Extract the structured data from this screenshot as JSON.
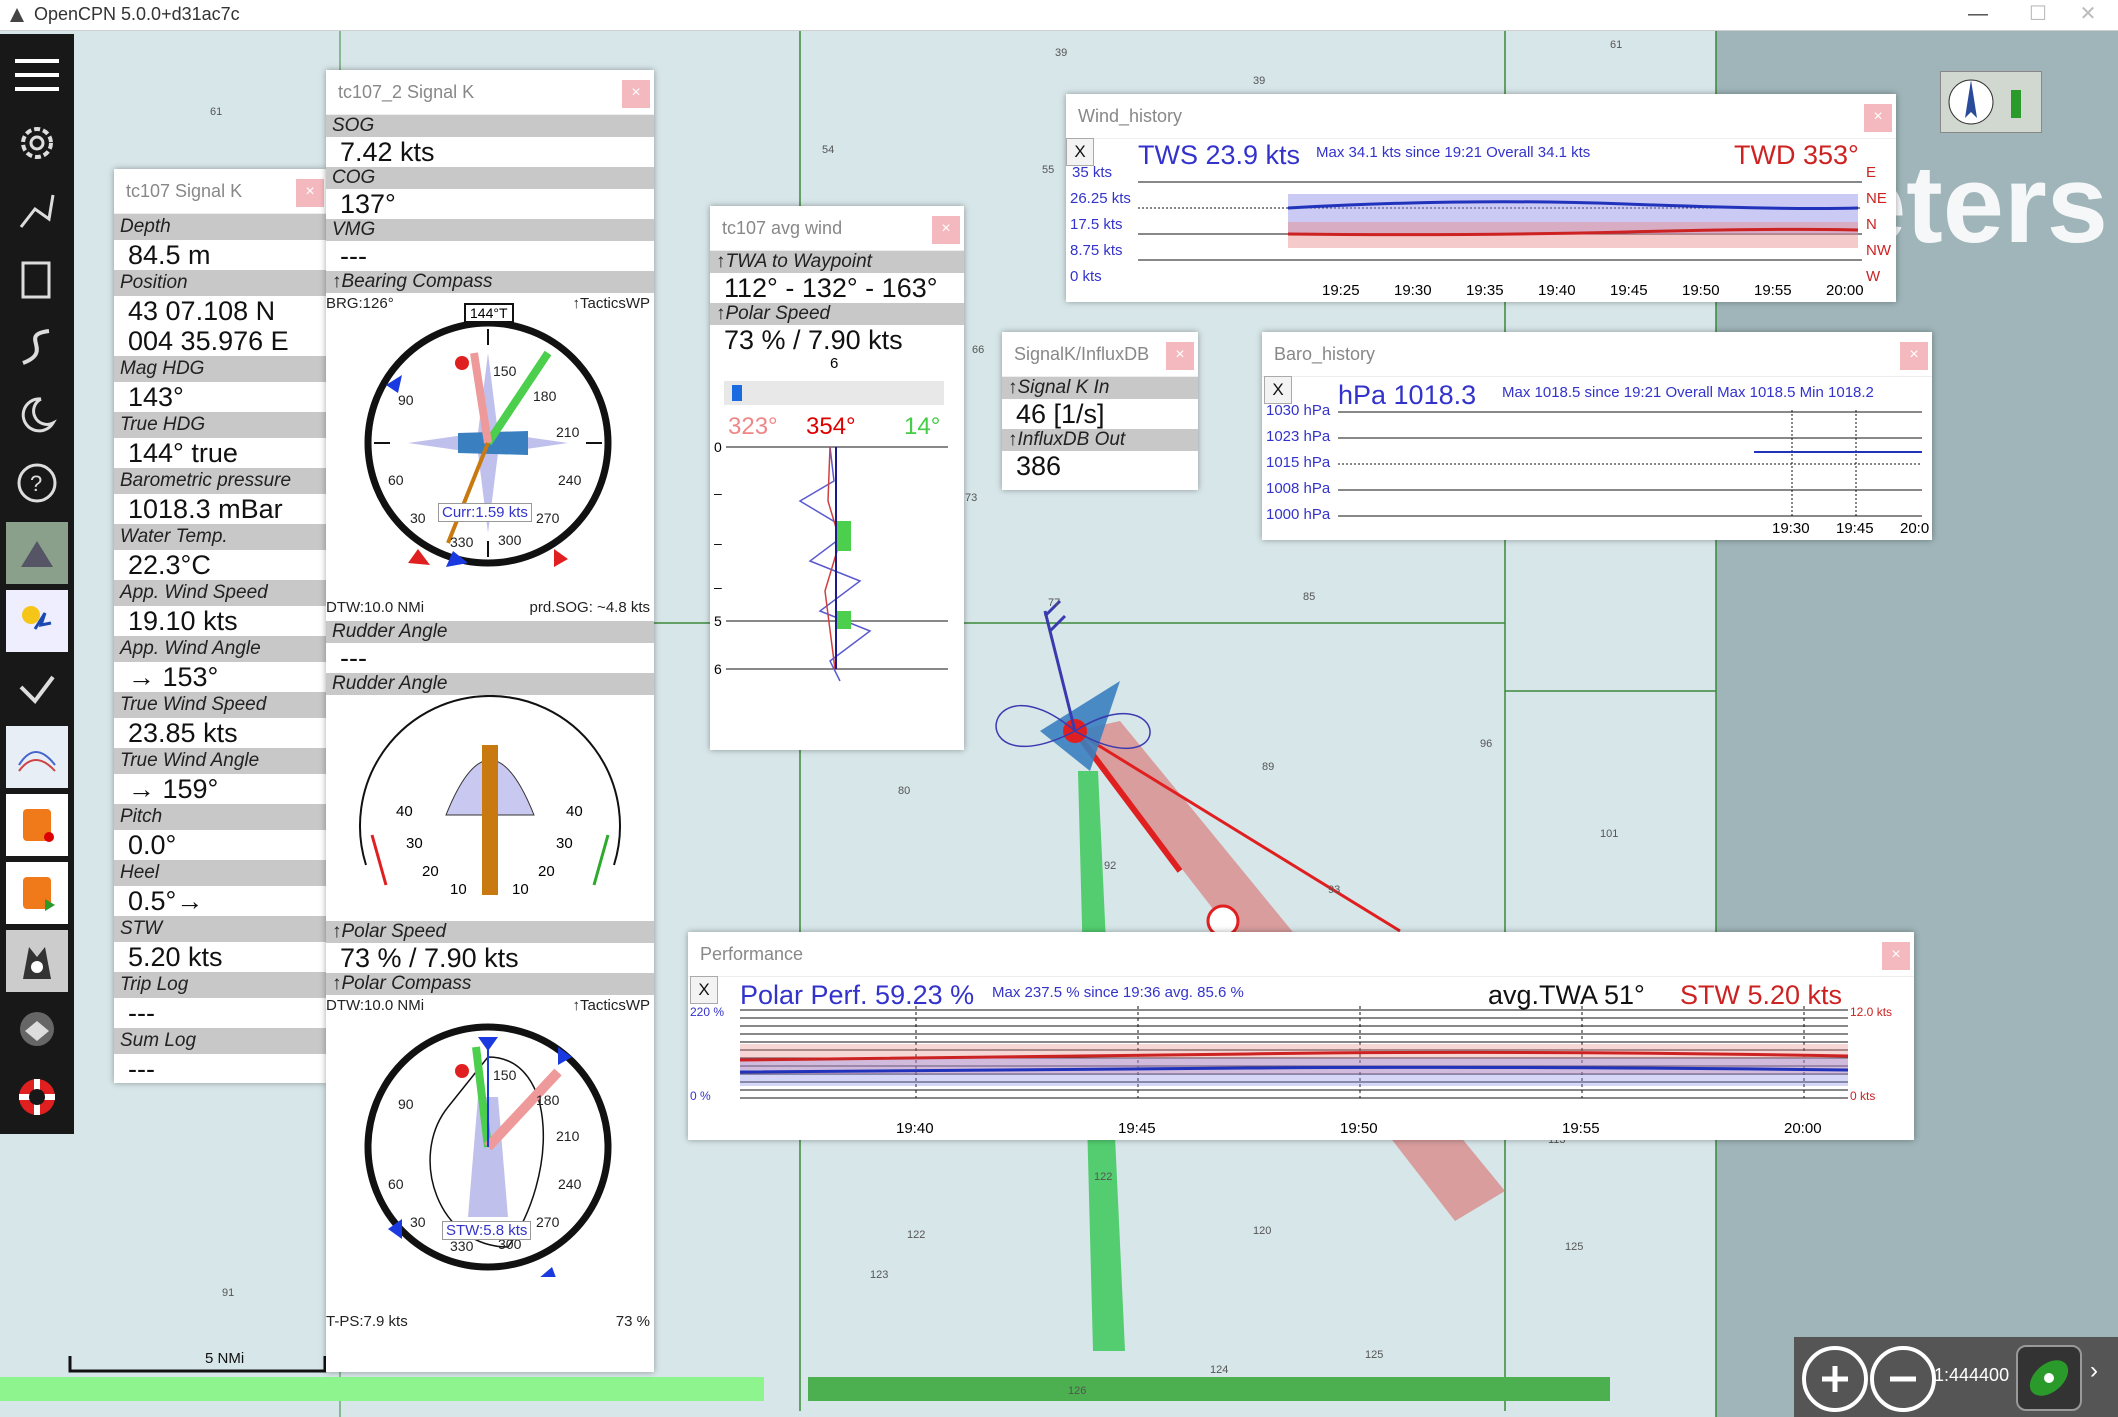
{
  "app": {
    "title": "OpenCPN 5.0.0+d31ac7c"
  },
  "map": {
    "soundings": [
      {
        "t": "61"
      },
      {
        "t": "39"
      },
      {
        "t": "39"
      },
      {
        "t": "61"
      },
      {
        "t": "54"
      },
      {
        "t": "55"
      },
      {
        "t": "66"
      },
      {
        "t": "73"
      },
      {
        "t": "77"
      },
      {
        "t": "85"
      },
      {
        "t": "96"
      },
      {
        "t": "89"
      },
      {
        "t": "80"
      },
      {
        "t": "92"
      },
      {
        "t": "93"
      },
      {
        "t": "101"
      },
      {
        "t": "80"
      },
      {
        "t": "81"
      },
      {
        "t": "122"
      },
      {
        "t": "122"
      },
      {
        "t": "123"
      },
      {
        "t": "120"
      },
      {
        "t": "125"
      },
      {
        "t": "124"
      },
      {
        "t": "125"
      },
      {
        "t": "91"
      },
      {
        "t": "113"
      },
      {
        "t": "73"
      },
      {
        "t": "160"
      },
      {
        "t": "126"
      }
    ],
    "overlay_text": "eters",
    "scale_label": "5 NMi",
    "scale_ratio": "1:444400"
  },
  "tc107": {
    "title": "tc107 Signal K",
    "rows": [
      {
        "cap": "Depth",
        "val": "84.5 m"
      },
      {
        "cap": "Position",
        "val": "43 07.108 N",
        "val2": "004 35.976 E"
      },
      {
        "cap": "Mag HDG",
        "val": "143°"
      },
      {
        "cap": "True HDG",
        "val": "144° true"
      },
      {
        "cap": "Barometric pressure",
        "val": "1018.3 mBar"
      },
      {
        "cap": "Water Temp.",
        "val": "22.3°C"
      },
      {
        "cap": "App. Wind Speed",
        "val": "19.10 kts"
      },
      {
        "cap": "App. Wind Angle",
        "val": "→  153°"
      },
      {
        "cap": "True Wind Speed",
        "val": "23.85 kts"
      },
      {
        "cap": "True Wind Angle",
        "val": "→  159°"
      },
      {
        "cap": "Pitch",
        "val": "0.0°"
      },
      {
        "cap": "Heel",
        "val": "0.5°→"
      },
      {
        "cap": "STW",
        "val": "5.20 kts"
      },
      {
        "cap": "Trip Log",
        "val": "---"
      },
      {
        "cap": "Sum Log",
        "val": "---"
      }
    ]
  },
  "tc107_2": {
    "title": "tc107_2 Signal K",
    "sog_cap": "SOG",
    "sog": "7.42 kts",
    "cog_cap": "COG",
    "cog": "137°",
    "vmg_cap": "VMG",
    "vmg": "---",
    "bearing_cap": "↑Bearing Compass",
    "brg": "BRG:126°",
    "tactics": "↑TacticsWP",
    "heading_box": "144°T",
    "curr": "Curr:1.59 kts",
    "dtw": "DTW:10.0 NMi",
    "prdsog": "prd.SOG: ~4.8 kts",
    "rudder_cap1": "Rudder Angle",
    "rudder_val": "---",
    "rudder_cap2": "Rudder Angle",
    "rudder_scale_left": [
      "40",
      "30",
      "20",
      "10"
    ],
    "rudder_scale_right": [
      "40",
      "30",
      "20",
      "10"
    ],
    "polar_cap": "↑Polar Speed",
    "polar_val": "73 % / 7.90 kts",
    "polar_compass_cap": "↑Polar Compass",
    "dtw2": "DTW:10.0 NMi",
    "tactics2": "↑TacticsWP",
    "stw_box": "STW:5.8 kts",
    "tps": "T-PS:7.9 kts",
    "pct": "73 %",
    "compass_labels": [
      "150",
      "180",
      "210",
      "240",
      "270",
      "300",
      "330",
      "0",
      "30",
      "60",
      "90",
      "120"
    ]
  },
  "avgwind": {
    "title": "tc107 avg wind",
    "twa_cap": "↑TWA to Waypoint",
    "twa_val": "112° - 132° - 163°",
    "polar_cap": "↑Polar Speed",
    "polar_val": "73 % / 7.90 kts",
    "slider_val": "6",
    "left": "323°",
    "mid": "354°",
    "right": "14°",
    "yticks": [
      "0",
      "–",
      "–",
      "–",
      "–",
      "5",
      "6"
    ]
  },
  "influx": {
    "title": "SignalK/InfluxDB",
    "in_cap": "↑Signal K In",
    "in_val": "46  [1/s]",
    "out_cap": "↑InfluxDB Out",
    "out_val": "386"
  },
  "wind_history": {
    "title": "Wind_history",
    "x_btn": "X",
    "tws": "TWS 23.9 kts",
    "stats": "Max 34.1 kts since 19:21  Overall 34.1 kts",
    "twd": "TWD 353°",
    "yleft": [
      "35 kts",
      "26.25 kts",
      "17.5 kts",
      "8.75 kts",
      "0 kts"
    ],
    "yright": [
      "E",
      "NE",
      "N",
      "NW",
      "W"
    ],
    "xlabels": [
      "19:25",
      "19:30",
      "19:35",
      "19:40",
      "19:45",
      "19:50",
      "19:55",
      "20:00"
    ]
  },
  "baro_history": {
    "title": "Baro_history",
    "x_btn": "X",
    "hpa": "hPa 1018.3",
    "stats": "Max 1018.5 since 19:21  Overall Max 1018.5 Min 1018.2",
    "yleft": [
      "1030 hPa",
      "1023 hPa",
      "1015 hPa",
      "1008 hPa",
      "1000 hPa"
    ],
    "xlabels": [
      "19:30",
      "19:45",
      "20:0"
    ]
  },
  "performance": {
    "title": "Performance",
    "x_btn": "X",
    "polar": "Polar Perf. 59.23 %",
    "stats": "Max 237.5 % since 19:36  avg. 85.6 %",
    "avgtwa": "avg.TWA  51°",
    "stw": "STW 5.20 kts",
    "yleft": [
      "220 %",
      "200 %",
      "180 %",
      "160 %",
      "140 %",
      "120 %",
      "100 %",
      "80 %",
      "60 %",
      "40 %",
      "20 %",
      "0 %"
    ],
    "yright": [
      "12.0 kts",
      "11.0 kts",
      "10.0 kts",
      "9.0 kts",
      "8.0 kts",
      "7.0 kts",
      "6.0 kts",
      "5.0 kts",
      "4.0 kts",
      "3.0 kts",
      "2.0 kts",
      "1.0 kts",
      "0 kts"
    ],
    "xlabels": [
      "19:40",
      "19:45",
      "19:50",
      "19:55",
      "20:00"
    ]
  },
  "colors": {
    "toolbar": "#181818",
    "sea": "#d7e6e9",
    "deep": "#9fb5b9",
    "green": "#2e9a3a",
    "blue": "#3333cc",
    "red": "#cc2222"
  }
}
